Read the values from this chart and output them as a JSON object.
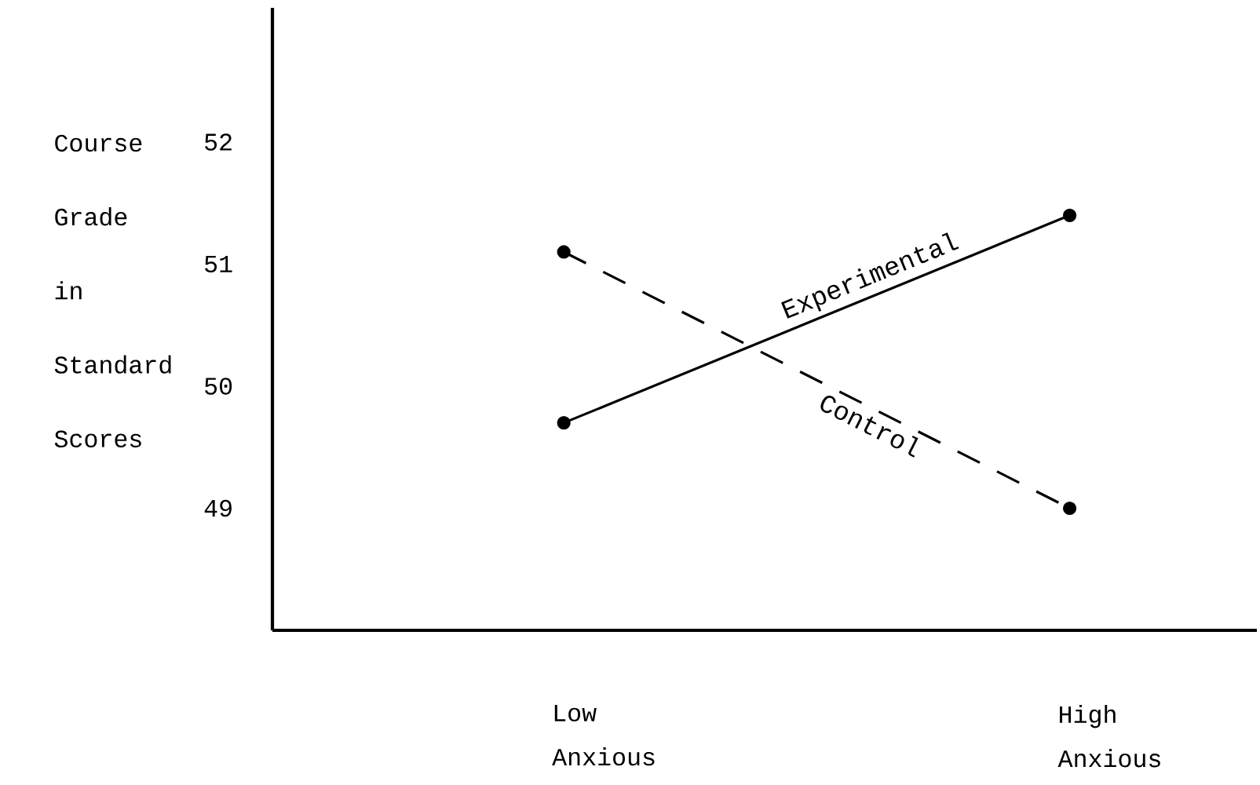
{
  "chart_data": {
    "type": "line",
    "ylabel": "Course Grade in Standard Scores",
    "categories": [
      "Low Anxious",
      "High Anxious"
    ],
    "ylim": [
      48,
      53.1
    ],
    "yticks": [
      49,
      50,
      51,
      52
    ],
    "marker": "circle",
    "series": [
      {
        "name": "Experimental",
        "color": "#000000",
        "line_style": "solid",
        "values": [
          49.7,
          51.4
        ]
      },
      {
        "name": "Control",
        "color": "#000000",
        "line_style": "dashed",
        "values": [
          51.1,
          49.0
        ]
      }
    ]
  }
}
